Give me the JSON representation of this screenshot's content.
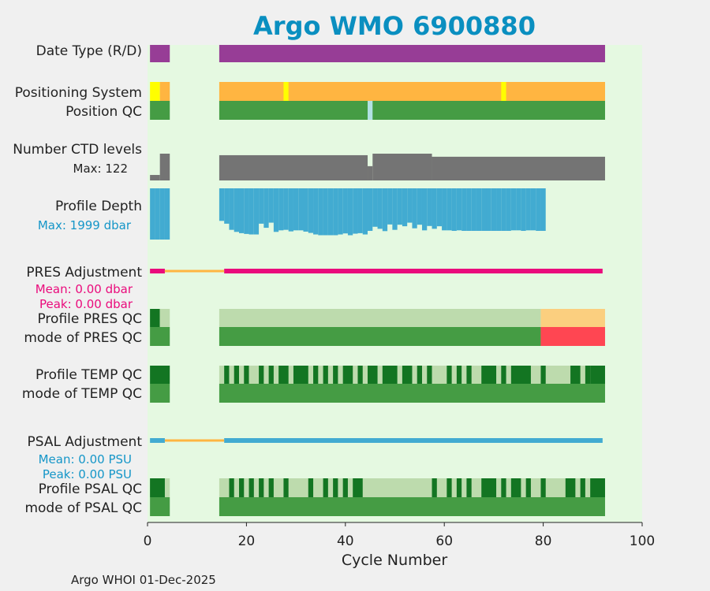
{
  "chart_data": {
    "type": "bar",
    "title": "Argo WMO 6900880",
    "title_color": "#0a8fc0",
    "xlabel": "Cycle Number",
    "footer": "Argo WHOI 01-Dec-2025",
    "xlim": [
      0,
      100
    ],
    "xticks": [
      0,
      20,
      40,
      60,
      80,
      100
    ],
    "colors": {
      "plot_bg": "#e5f9e1",
      "purple": "#973d96",
      "orange": "#ffb541",
      "yellow": "#fffe00",
      "lightblue": "#b2e1e4",
      "green": "#459c44",
      "darkgreen": "#137522",
      "palegreen": "#bddbad",
      "gray": "#747474",
      "blue": "#42abd1",
      "magenta": "#ea0b7c",
      "salmon": "#ff4652",
      "peach": "#fbcf7f",
      "sub_blue": "#1596c8",
      "sub_magenta": "#ea0b7c"
    },
    "rows": {
      "date_type": {
        "label": "Date Type (R/D)"
      },
      "positioning_system": {
        "label": "Positioning System"
      },
      "position_qc": {
        "label": "Position QC"
      },
      "ctd_levels": {
        "label": "Number CTD levels",
        "max_label": "Max: 122",
        "max": 122
      },
      "profile_depth": {
        "label": "Profile Depth",
        "max_label": "Max: 1999 dbar",
        "max": 1999
      },
      "pres_adjustment": {
        "label": "PRES Adjustment",
        "mean_label": "Mean: 0.00 dbar",
        "peak_label": "Peak: 0.00 dbar"
      },
      "profile_pres_qc": {
        "label": "Profile PRES QC"
      },
      "mode_pres_qc": {
        "label": "mode of PRES QC"
      },
      "profile_temp_qc": {
        "label": "Profile TEMP QC"
      },
      "mode_temp_qc": {
        "label": "mode of TEMP QC"
      },
      "psal_adjustment": {
        "label": "PSAL Adjustment",
        "mean_label": "Mean: 0.00 PSU",
        "peak_label": "Peak: 0.00 PSU"
      },
      "profile_psal_qc": {
        "label": "Profile PSAL QC"
      },
      "mode_psal_qc": {
        "label": "mode of PSAL QC"
      }
    },
    "date_type_segments": [
      [
        0.5,
        4.5,
        "purple"
      ],
      [
        14.5,
        92.5,
        "purple"
      ]
    ],
    "positioning_segments": [
      [
        0.5,
        2.5,
        "yellow"
      ],
      [
        2.5,
        4.5,
        "orange"
      ],
      [
        14.5,
        92.5,
        "orange"
      ],
      [
        27.5,
        28.5,
        "yellow"
      ],
      [
        71.5,
        72.5,
        "yellow"
      ]
    ],
    "position_qc_segments": [
      [
        0.5,
        4.5,
        "green"
      ],
      [
        14.5,
        92.5,
        "green"
      ],
      [
        44.5,
        45.5,
        "lightblue"
      ]
    ],
    "ctd_levels": {
      "cycles": [
        1,
        2,
        3,
        4,
        15,
        20,
        30,
        40,
        44,
        45,
        46,
        50,
        57,
        58,
        70,
        80,
        92
      ],
      "values": [
        25,
        25,
        122,
        122,
        115,
        115,
        115,
        115,
        115,
        65,
        122,
        122,
        122,
        108,
        108,
        108,
        108
      ]
    },
    "profile_depth": {
      "start_cycle": 1,
      "values": [
        1999,
        1999,
        1999,
        1999,
        0,
        0,
        0,
        0,
        0,
        0,
        0,
        0,
        0,
        0,
        1270,
        1380,
        1620,
        1700,
        1750,
        1780,
        1800,
        1800,
        1380,
        1540,
        1340,
        1700,
        1640,
        1620,
        1680,
        1640,
        1640,
        1690,
        1740,
        1800,
        1830,
        1830,
        1830,
        1830,
        1800,
        1760,
        1830,
        1770,
        1750,
        1800,
        1660,
        1500,
        1580,
        1670,
        1410,
        1620,
        1420,
        1480,
        1340,
        1560,
        1420,
        1640,
        1470,
        1580,
        1480,
        1640,
        1640,
        1660,
        1640,
        1660,
        1660,
        1660,
        1660,
        1660,
        1660,
        1660,
        1660,
        1660,
        1660,
        1640,
        1640,
        1660,
        1640,
        1640,
        1660,
        1660
      ],
      "color_regions": [
        [
          0.5,
          4.5
        ],
        [
          14.5,
          79.5
        ]
      ]
    },
    "pres_adjustment_segments": [
      [
        0.5,
        3.5,
        "magenta",
        6
      ],
      [
        3.5,
        15.5,
        "orange",
        3
      ],
      [
        15.5,
        92.0,
        "magenta",
        6
      ]
    ],
    "profile_pres_qc_segments": [
      [
        0.5,
        2.5,
        "darkgreen"
      ],
      [
        2.5,
        4.5,
        "palegreen"
      ],
      [
        14.5,
        79.5,
        "palegreen"
      ],
      [
        79.5,
        92.5,
        "peach"
      ]
    ],
    "mode_pres_qc_segments": [
      [
        0.5,
        4.5,
        "green"
      ],
      [
        14.5,
        79.5,
        "green"
      ],
      [
        79.5,
        92.5,
        "salmon"
      ]
    ],
    "profile_temp_qc_dark": [
      [
        0.5,
        4.5
      ],
      [
        15.5,
        16.5
      ],
      [
        17.5,
        18.5
      ],
      [
        19.5,
        20.5
      ],
      [
        22.5,
        23.5
      ],
      [
        24.5,
        25.5
      ],
      [
        26.5,
        28.5
      ],
      [
        29.5,
        32.5
      ],
      [
        33.5,
        34.5
      ],
      [
        35.5,
        36.5
      ],
      [
        37.5,
        38.5
      ],
      [
        39.5,
        41.5
      ],
      [
        42.5,
        43.5
      ],
      [
        44.5,
        46.5
      ],
      [
        47.5,
        50.5
      ],
      [
        51.5,
        53.5
      ],
      [
        54.5,
        55.5
      ],
      [
        56.5,
        57.5
      ],
      [
        60.5,
        61.5
      ],
      [
        62.5,
        63.5
      ],
      [
        64.5,
        65.5
      ],
      [
        67.5,
        70.5
      ],
      [
        71.5,
        72.5
      ],
      [
        73.5,
        77.5
      ],
      [
        79.5,
        80.5
      ],
      [
        85.5,
        87.5
      ],
      [
        88.5,
        89.5
      ],
      [
        89.5,
        92.5
      ]
    ],
    "profile_temp_qc_range": [
      [
        14.5,
        92.5
      ]
    ],
    "mode_temp_qc_segments": [
      [
        0.5,
        4.5,
        "green"
      ],
      [
        14.5,
        92.5,
        "green"
      ]
    ],
    "psal_adjustment_segments": [
      [
        0.5,
        3.5,
        "blue",
        6
      ],
      [
        3.5,
        15.5,
        "orange",
        3
      ],
      [
        15.5,
        92.0,
        "blue",
        6
      ]
    ],
    "profile_psal_qc_dark": [
      [
        0.5,
        3.5
      ],
      [
        16.5,
        17.5
      ],
      [
        18.5,
        19.5
      ],
      [
        20.5,
        21.5
      ],
      [
        22.5,
        23.5
      ],
      [
        24.5,
        25.5
      ],
      [
        27.5,
        28.5
      ],
      [
        32.5,
        33.5
      ],
      [
        35.5,
        36.5
      ],
      [
        37.5,
        38.5
      ],
      [
        39.5,
        40.5
      ],
      [
        41.5,
        43.5
      ],
      [
        57.5,
        58.5
      ],
      [
        60.5,
        61.5
      ],
      [
        62.5,
        63.5
      ],
      [
        64.5,
        65.5
      ],
      [
        67.5,
        70.5
      ],
      [
        71.5,
        72.5
      ],
      [
        73.5,
        75.5
      ],
      [
        76.5,
        77.5
      ],
      [
        79.5,
        80.5
      ],
      [
        84.5,
        86.5
      ],
      [
        87.5,
        88.5
      ],
      [
        89.5,
        92.5
      ]
    ],
    "profile_psal_qc_range": [
      [
        0.5,
        4.5
      ],
      [
        14.5,
        92.5
      ]
    ],
    "mode_psal_qc_segments": [
      [
        0.5,
        4.5,
        "green"
      ],
      [
        14.5,
        92.5,
        "green"
      ]
    ]
  }
}
